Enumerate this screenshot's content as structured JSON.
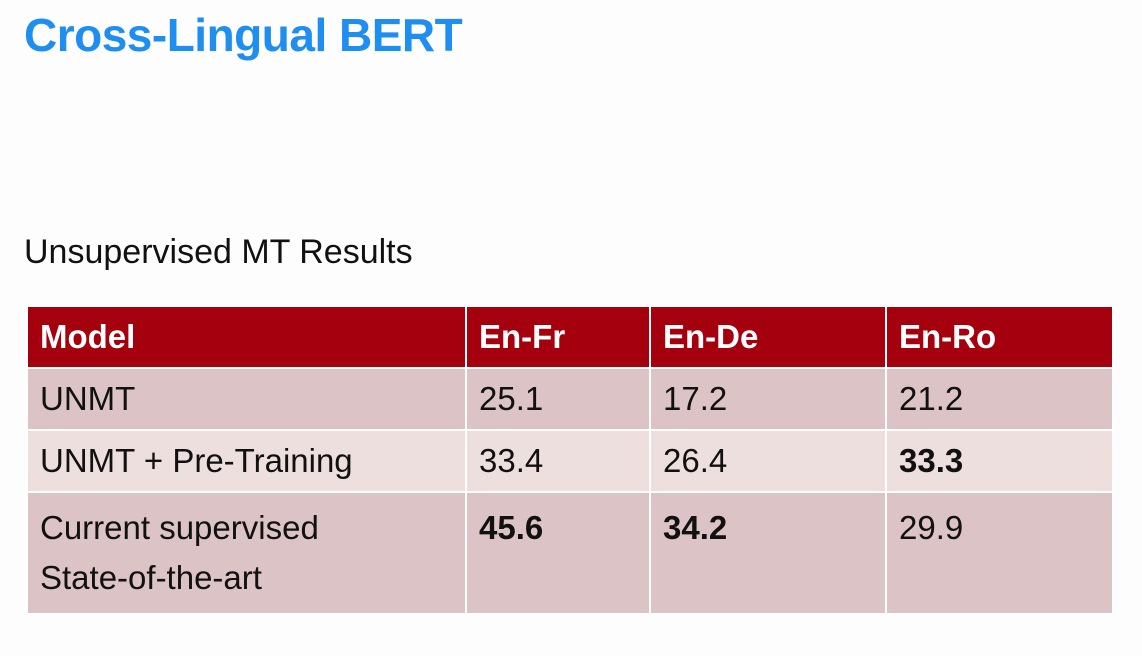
{
  "slide": {
    "title": "Cross-Lingual BERT"
  },
  "section": {
    "heading": "Unsupervised MT Results"
  },
  "table": {
    "headers": [
      "Model",
      "En-Fr",
      "En-De",
      "En-Ro"
    ],
    "rows": [
      {
        "model_lines": [
          "UNMT"
        ],
        "en_fr": "25.1",
        "en_de": "17.2",
        "en_ro": "21.2",
        "bold": []
      },
      {
        "model_lines": [
          "UNMT + Pre-Training"
        ],
        "en_fr": "33.4",
        "en_de": "26.4",
        "en_ro": "33.3",
        "bold": [
          "en_ro"
        ]
      },
      {
        "model_lines": [
          "Current supervised",
          "State-of-the-art"
        ],
        "en_fr": "45.6",
        "en_de": "34.2",
        "en_ro": "29.9",
        "bold": [
          "en_fr",
          "en_de"
        ]
      }
    ]
  },
  "colors": {
    "title": "#1e8ef0",
    "header_bg": "#a4000d",
    "row_odd_bg": "#dcc3c5",
    "row_even_bg": "#eedfdf"
  }
}
